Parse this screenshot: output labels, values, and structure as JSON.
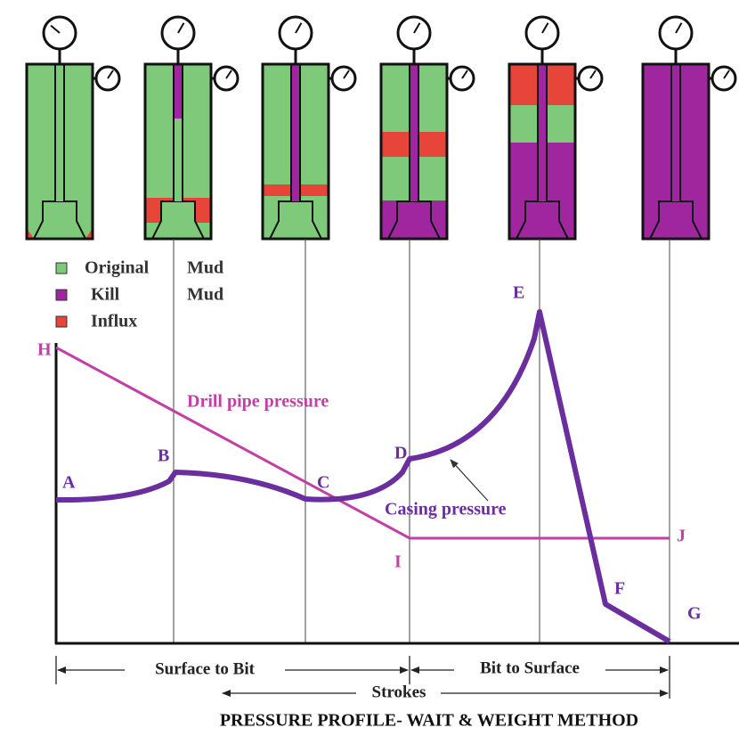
{
  "legend": [
    {
      "words": [
        "Original",
        "Mud"
      ]
    },
    {
      "words": [
        "Kill",
        "Mud"
      ]
    },
    {
      "words": [
        "Influx"
      ]
    }
  ],
  "points": {
    "H": "H",
    "A": "A",
    "B": "B",
    "C": "C",
    "D": "D",
    "E": "E",
    "F": "F",
    "G": "G",
    "I": "I",
    "J": "J"
  },
  "annotations": {
    "drill_pipe": "Drill pipe pressure",
    "casing": "Casing pressure"
  },
  "axis": {
    "left": "Surface to Bit",
    "right": "Bit to Surface",
    "strokes": "Strokes"
  },
  "title": "PRESSURE PROFILE- WAIT & WEIGHT METHOD"
}
